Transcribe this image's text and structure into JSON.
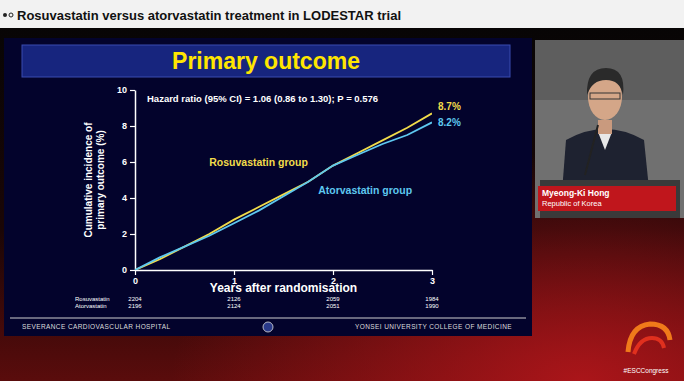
{
  "chart_data": {
    "type": "line",
    "title": "Primary outcome",
    "subtitle": "Hazard ratio (95% CI) = 1.06 (0.86 to 1.30); P = 0.576",
    "xlabel": "Years after randomisation",
    "ylabel": [
      "Cumulative incidence of",
      "primary outcome (%)"
    ],
    "x": [
      0,
      0.25,
      0.5,
      0.75,
      1,
      1.25,
      1.5,
      1.75,
      2,
      2.25,
      2.5,
      2.75,
      3
    ],
    "series": [
      {
        "name": "Rosuvastatin group",
        "color": "#f2dc4a",
        "values": [
          0,
          0.6,
          1.3,
          2.0,
          2.8,
          3.5,
          4.2,
          4.9,
          5.8,
          6.5,
          7.2,
          7.9,
          8.7
        ],
        "end_label": "8.7%",
        "at_risk_label": "Rosuvastatin",
        "at_risk": [
          2204,
          2126,
          2059,
          1984
        ]
      },
      {
        "name": "Atorvastatin group",
        "color": "#5ec8f0",
        "values": [
          0,
          0.7,
          1.3,
          1.9,
          2.6,
          3.3,
          4.1,
          4.9,
          5.8,
          6.4,
          7.0,
          7.5,
          8.2
        ],
        "end_label": "8.2%",
        "at_risk_label": "Atorvastatin",
        "at_risk": [
          2196,
          2124,
          2051,
          1990
        ]
      }
    ],
    "xlim": [
      0,
      3
    ],
    "xticks": [
      0,
      1,
      2,
      3
    ],
    "ylim": [
      0,
      10
    ],
    "yticks": [
      0,
      2,
      4,
      6,
      8,
      10
    ],
    "grid": false
  },
  "page": {
    "header": "Rosuvastatin versus atorvastatin treatment in LODESTAR trial",
    "footer": [
      "SEVERANCE CARDIOVASCULAR HOSPITAL",
      "YONSEI UNIVERSITY COLLEGE OF MEDICINE"
    ],
    "speaker": {
      "name": "Myeong-Ki Hong",
      "country": "Republic of Korea"
    },
    "hashtag": "#ESCCongress"
  }
}
